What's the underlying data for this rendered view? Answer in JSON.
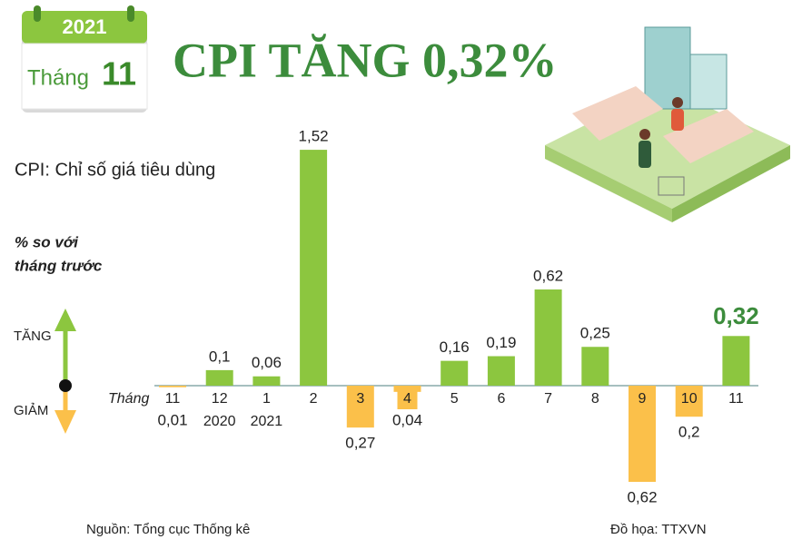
{
  "chart_data": {
    "type": "bar",
    "title": "CPI TĂNG 0,32%",
    "year": "2021",
    "month_word": "Tháng",
    "month": "11",
    "subtitle": "CPI: Chỉ số giá tiêu dùng",
    "unit_label": [
      "% so với",
      "tháng trước"
    ],
    "up_label": "TĂNG",
    "down_label": "GIẢM",
    "x_label": "Tháng",
    "categories": [
      "11",
      "12",
      "1",
      "2",
      "3",
      "4",
      "5",
      "6",
      "7",
      "8",
      "9",
      "10",
      "11"
    ],
    "years": [
      null,
      "2020",
      "2021",
      null,
      null,
      null,
      null,
      null,
      null,
      null,
      null,
      null,
      null
    ],
    "values": [
      -0.01,
      0.1,
      0.06,
      1.52,
      -0.27,
      -0.04,
      0.16,
      0.19,
      0.62,
      0.25,
      -0.62,
      -0.2,
      0.32
    ],
    "value_labels": [
      "0,01",
      "0,1",
      "0,06",
      "1,52",
      "0,27",
      "0,04",
      "0,16",
      "0,19",
      "0,62",
      "0,25",
      "0,62",
      "0,2",
      "0,32"
    ],
    "colors": {
      "up": "#8cc63f",
      "down": "#fbc04a"
    },
    "source": "Nguồn: Tổng cục Thống kê",
    "credit": "Đồ họa: TTXVN"
  }
}
